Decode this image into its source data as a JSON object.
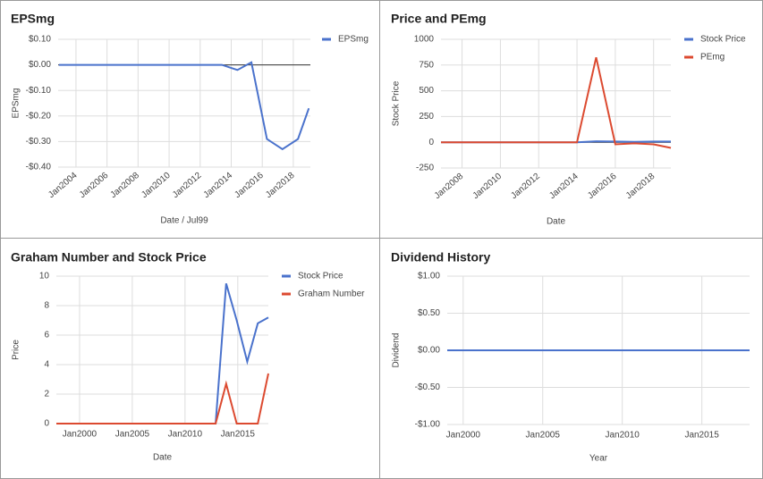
{
  "chart_data": [
    {
      "type": "line",
      "title": "EPSmg",
      "xlabel": "Date / Jul99",
      "ylabel": "EPSmg",
      "x": [
        2002.9,
        2013.4,
        2014.4,
        2015.3,
        2016.3,
        2017.3,
        2018.3,
        2019.0
      ],
      "series": [
        {
          "name": "EPSmg",
          "color": "#4a72cc",
          "values": [
            0,
            0,
            -0.02,
            0.01,
            -0.29,
            -0.33,
            -0.29,
            -0.17
          ]
        }
      ],
      "xlim": [
        2002.85,
        2019.1
      ],
      "ylim": [
        -0.4,
        0.1
      ],
      "xticks": [
        {
          "value": 2004,
          "label": "Jan2004"
        },
        {
          "value": 2006,
          "label": "Jan2006"
        },
        {
          "value": 2008,
          "label": "Jan2008"
        },
        {
          "value": 2010,
          "label": "Jan2010"
        },
        {
          "value": 2012,
          "label": "Jan2012"
        },
        {
          "value": 2014,
          "label": "Jan2014"
        },
        {
          "value": 2016,
          "label": "Jan2016"
        },
        {
          "value": 2018,
          "label": "Jan2018"
        }
      ],
      "yticks": [
        {
          "value": 0.1,
          "label": "$0.10"
        },
        {
          "value": 0,
          "label": "$0.00"
        },
        {
          "value": -0.1,
          "label": "-$0.10"
        },
        {
          "value": -0.2,
          "label": "-$0.20"
        },
        {
          "value": -0.3,
          "label": "-$0.30"
        },
        {
          "value": -0.4,
          "label": "-$0.40"
        }
      ],
      "grid": true,
      "legend": "right"
    },
    {
      "type": "line",
      "title": "Price and PEmg",
      "xlabel": "Date",
      "ylabel": "Stock Price",
      "x": [
        2006.9,
        2014.0,
        2015.0,
        2016.0,
        2017.0,
        2018.0,
        2018.9
      ],
      "series": [
        {
          "name": "Stock Price",
          "color": "#4a72cc",
          "values": [
            0,
            0,
            9,
            7,
            4,
            7,
            7
          ]
        },
        {
          "name": "PEmg",
          "color": "#dc4a30",
          "values": [
            0,
            0,
            825,
            -20,
            -10,
            -20,
            -55
          ]
        }
      ],
      "xlim": [
        2006.9,
        2018.9
      ],
      "ylim": [
        -250,
        1000
      ],
      "xticks": [
        {
          "value": 2008,
          "label": "Jan2008"
        },
        {
          "value": 2010,
          "label": "Jan2010"
        },
        {
          "value": 2012,
          "label": "Jan2012"
        },
        {
          "value": 2014,
          "label": "Jan2014"
        },
        {
          "value": 2016,
          "label": "Jan2016"
        },
        {
          "value": 2018,
          "label": "Jan2018"
        }
      ],
      "yticks": [
        1000,
        750,
        500,
        250,
        0,
        -250
      ],
      "grid": true,
      "legend": "right"
    },
    {
      "type": "line",
      "title": "Graham Number and Stock Price",
      "xlabel": "Date",
      "ylabel": "Price",
      "x": [
        1997.8,
        2012.9,
        2013.9,
        2014.9,
        2015.9,
        2016.9,
        2017.9
      ],
      "series": [
        {
          "name": "Stock Price",
          "color": "#4a72cc",
          "values": [
            0,
            0,
            9.5,
            7,
            4.2,
            6.8,
            7.2
          ]
        },
        {
          "name": "Graham Number",
          "color": "#dc4a30",
          "values": [
            0,
            0,
            2.7,
            0,
            0,
            0,
            3.4
          ]
        }
      ],
      "xlim": [
        1997.8,
        2017.9
      ],
      "ylim": [
        0,
        10
      ],
      "xticks": [
        {
          "value": 2000,
          "label": "Jan2000"
        },
        {
          "value": 2005,
          "label": "Jan2005"
        },
        {
          "value": 2010,
          "label": "Jan2010"
        },
        {
          "value": 2015,
          "label": "Jan2015"
        }
      ],
      "yticks": [
        10,
        8,
        6,
        4,
        2,
        0
      ],
      "grid": true,
      "legend": "right"
    },
    {
      "type": "line",
      "title": "Dividend History",
      "xlabel": "Year",
      "ylabel": "Dividend",
      "x": [
        1999.0,
        2018.0
      ],
      "series": [
        {
          "color": "#4a72cc",
          "values": [
            0,
            0
          ]
        }
      ],
      "xlim": [
        1999.0,
        2018.0
      ],
      "ylim": [
        -1,
        1
      ],
      "xticks": [
        {
          "value": 2000,
          "label": "Jan2000"
        },
        {
          "value": 2005,
          "label": "Jan2005"
        },
        {
          "value": 2010,
          "label": "Jan2010"
        },
        {
          "value": 2015,
          "label": "Jan2015"
        }
      ],
      "yticks": [
        {
          "value": 1,
          "label": "$1.00"
        },
        {
          "value": 0.5,
          "label": "$0.50"
        },
        {
          "value": 0,
          "label": "$0.00"
        },
        {
          "value": -0.5,
          "label": "-$0.50"
        },
        {
          "value": -1,
          "label": "-$1.00"
        }
      ],
      "grid": true
    }
  ]
}
